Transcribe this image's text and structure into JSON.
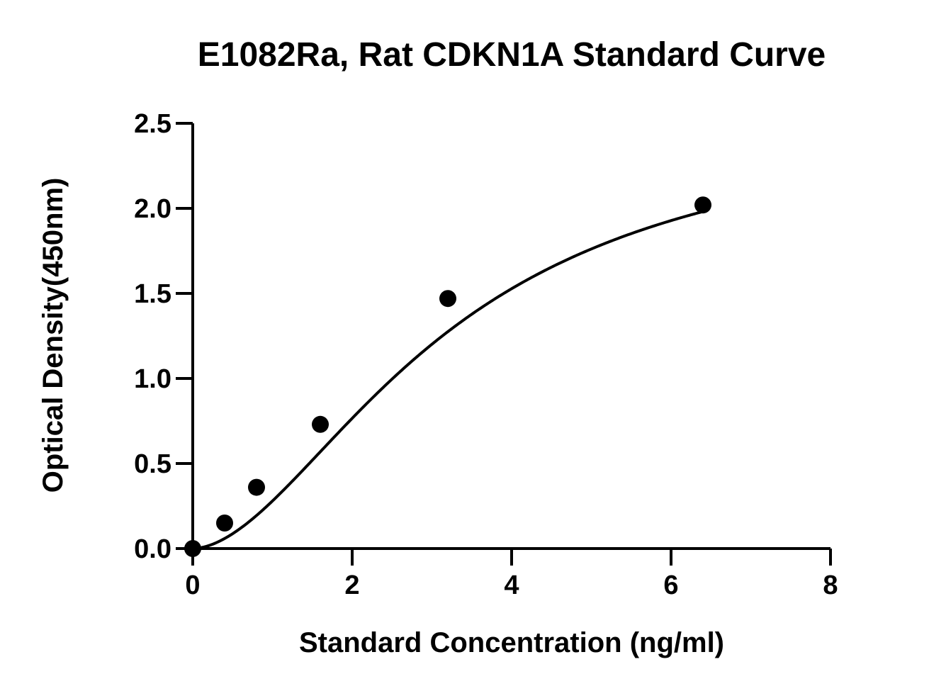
{
  "chart_data": {
    "type": "scatter",
    "title": "E1082Ra, Rat CDKN1A Standard Curve",
    "xlabel": "Standard Concentration (ng/ml)",
    "ylabel": "Optical Density(450nm)",
    "xlim": [
      0,
      8
    ],
    "ylim": [
      0,
      2.5
    ],
    "x_ticks": [
      0,
      2,
      4,
      6,
      8
    ],
    "x_tick_labels": [
      "0",
      "2",
      "4",
      "6",
      "8"
    ],
    "y_ticks": [
      0,
      0.5,
      1.0,
      1.5,
      2.0,
      2.5
    ],
    "y_tick_labels": [
      "0.0",
      "0.5",
      "1.0",
      "1.5",
      "2.0",
      "2.5"
    ],
    "grid": false,
    "legend": "none",
    "series": [
      {
        "x": [
          0,
          0.4,
          0.8,
          1.6,
          3.2,
          6.4
        ],
        "y": [
          0.0,
          0.15,
          0.36,
          0.73,
          1.47,
          2.02
        ]
      }
    ],
    "fit_curve": {
      "type": "4pl",
      "a": 0.0,
      "b": 1.8,
      "c": 3.2,
      "d": 2.55,
      "x_range": [
        0,
        6.4
      ]
    },
    "colors": {
      "marks": "#000000",
      "background": "#ffffff"
    }
  }
}
